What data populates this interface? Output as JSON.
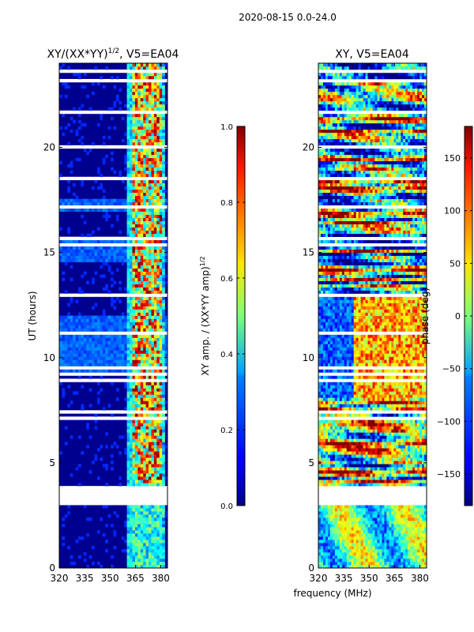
{
  "figure": {
    "suptitle": "2020-08-15 0.0-24.0",
    "xlabel": "frequency (MHz)"
  },
  "chart_data": [
    {
      "type": "heatmap",
      "title": "XY/(XX*YY)",
      "title_exponent": "1/2",
      "title_suffix": ", V5=EA04",
      "ylabel": "UT (hours)",
      "xlim": [
        320,
        384
      ],
      "ylim": [
        0,
        24
      ],
      "xticks": [
        320,
        335,
        350,
        365,
        380
      ],
      "yticks": [
        0,
        5,
        10,
        15,
        20
      ],
      "colorbar": {
        "label": "XY amp. / (XX*YY amp)",
        "label_exponent": "1/2",
        "range": [
          0.0,
          1.0
        ],
        "ticks": [
          "0.0",
          "0.2",
          "0.4",
          "0.6",
          "0.8",
          "1.0"
        ],
        "colormap": "jet"
      }
    },
    {
      "type": "heatmap",
      "title": "XY, V5=EA04",
      "xlim": [
        320,
        384
      ],
      "ylim": [
        0,
        24
      ],
      "xticks": [
        320,
        335,
        350,
        365,
        380
      ],
      "yticks": [
        0,
        5,
        10,
        15,
        20
      ],
      "colorbar": {
        "label": "phase (deg)",
        "range": [
          -180,
          180
        ],
        "ticks": [
          "−150",
          "−100",
          "−50",
          "0",
          "50",
          "100",
          "150"
        ],
        "colormap": "jet"
      }
    }
  ]
}
